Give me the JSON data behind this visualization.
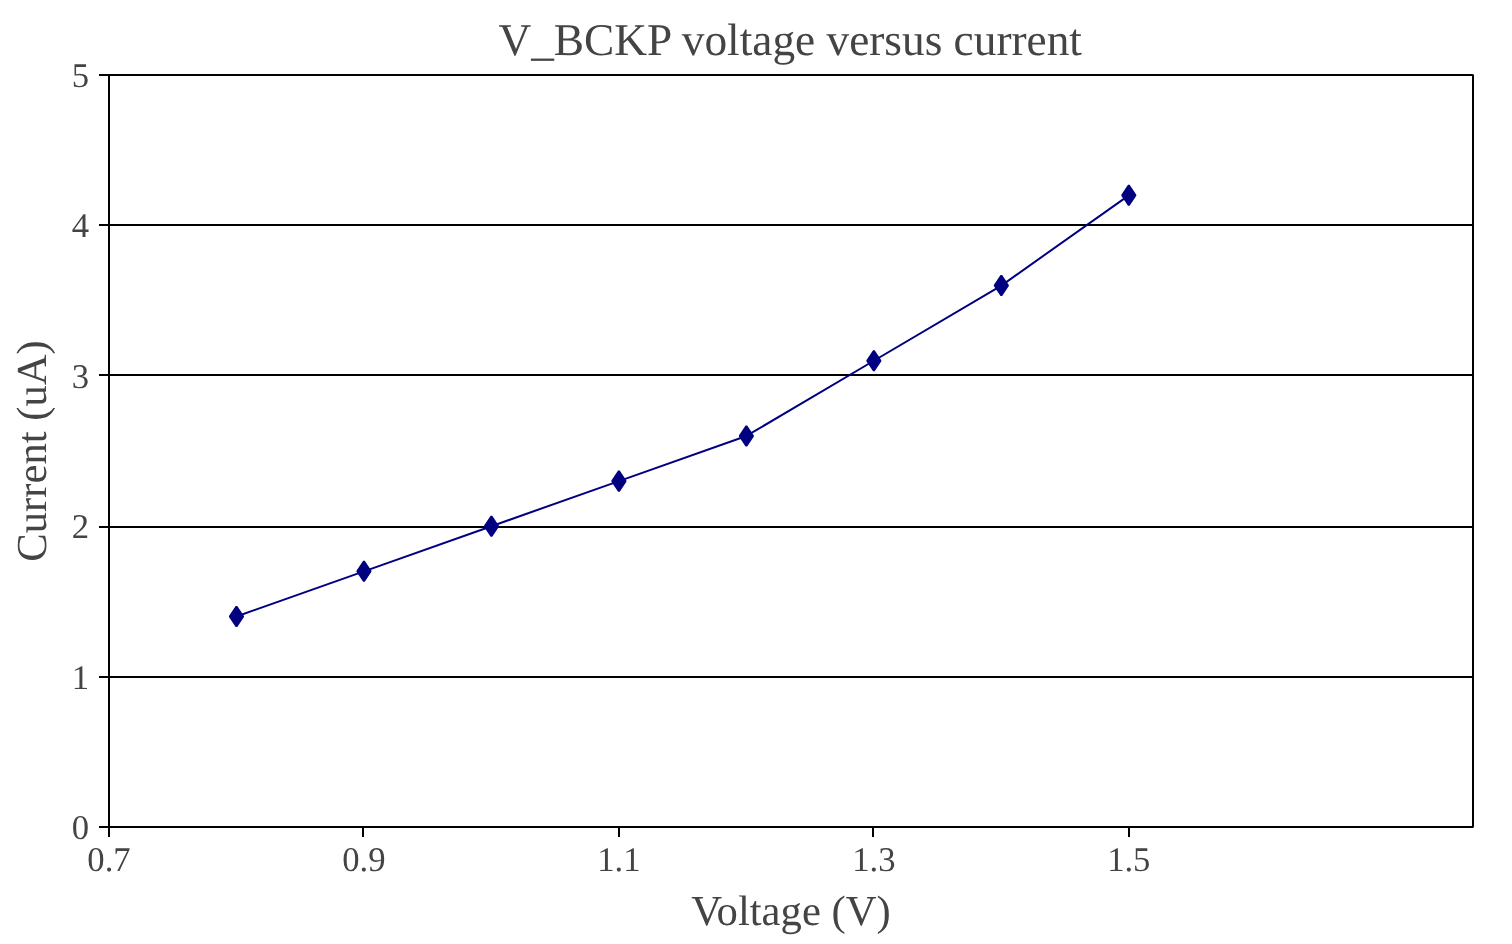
{
  "chart_data": {
    "type": "line",
    "title": "V_BCKP voltage versus current",
    "xlabel": "Voltage (V)",
    "ylabel": "Current (uA)",
    "x": [
      0.8,
      0.9,
      1.0,
      1.1,
      1.2,
      1.3,
      1.4,
      1.5
    ],
    "series": [
      {
        "color": "#000080",
        "values": [
          1.4,
          1.7,
          2.0,
          2.3,
          2.6,
          3.1,
          3.6,
          4.2
        ]
      }
    ],
    "xlim": [
      0.7,
      1.77
    ],
    "xticks": [
      0.7,
      0.9,
      1.1,
      1.3,
      1.5
    ],
    "ylim": [
      0,
      5
    ],
    "yticks": [
      0,
      1,
      2,
      3,
      4,
      5
    ],
    "grid": "y",
    "marker": "diamond",
    "line_style": "solid"
  }
}
